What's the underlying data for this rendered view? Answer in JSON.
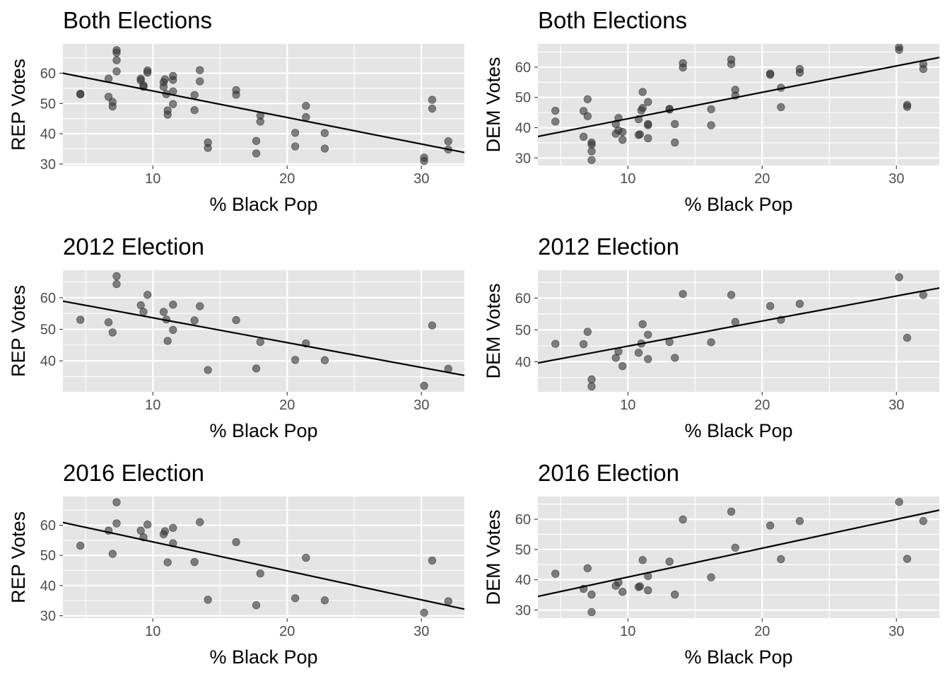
{
  "figure": {
    "background": "#ffffff",
    "panel_background": "#e5e5e5",
    "grid_color": "#ffffff",
    "point_color": "#333333",
    "line_color": "#000000"
  },
  "chart_data": [
    {
      "type": "scatter",
      "title": "Both Elections",
      "xlabel": "% Black Pop",
      "ylabel": "REP Votes",
      "xlim": [
        3.3,
        33.2
      ],
      "ylim": [
        29.5,
        69.7
      ],
      "xticks": [
        10,
        20,
        30
      ],
      "yticks": [
        30,
        40,
        50,
        60
      ],
      "grid": true,
      "trendline": {
        "x": [
          3.3,
          33.2
        ],
        "y": [
          60.0,
          33.8
        ]
      },
      "points": [
        [
          4.6,
          53.2
        ],
        [
          4.6,
          53.0
        ],
        [
          6.7,
          58.2
        ],
        [
          6.7,
          52.2
        ],
        [
          7.0,
          50.5
        ],
        [
          7.0,
          49.0
        ],
        [
          7.3,
          67.6
        ],
        [
          7.3,
          66.8
        ],
        [
          7.3,
          64.3
        ],
        [
          7.3,
          60.6
        ],
        [
          9.1,
          58.2
        ],
        [
          9.1,
          57.6
        ],
        [
          9.3,
          56.0
        ],
        [
          9.3,
          55.5
        ],
        [
          9.6,
          60.9
        ],
        [
          9.6,
          60.2
        ],
        [
          10.8,
          57.0
        ],
        [
          10.8,
          55.5
        ],
        [
          10.9,
          58.0
        ],
        [
          11.0,
          53.1
        ],
        [
          11.1,
          47.7
        ],
        [
          11.1,
          46.3
        ],
        [
          11.5,
          59.1
        ],
        [
          11.5,
          57.8
        ],
        [
          11.5,
          54.0
        ],
        [
          11.5,
          49.8
        ],
        [
          13.1,
          52.8
        ],
        [
          13.1,
          47.8
        ],
        [
          13.5,
          61.0
        ],
        [
          13.5,
          57.3
        ],
        [
          14.1,
          37.1
        ],
        [
          14.1,
          35.3
        ],
        [
          16.2,
          54.4
        ],
        [
          16.2,
          52.9
        ],
        [
          17.7,
          37.6
        ],
        [
          17.7,
          33.5
        ],
        [
          18.0,
          46.0
        ],
        [
          18.0,
          44.0
        ],
        [
          20.6,
          40.3
        ],
        [
          20.6,
          35.8
        ],
        [
          21.4,
          49.2
        ],
        [
          21.4,
          45.5
        ],
        [
          22.8,
          40.2
        ],
        [
          22.8,
          35.1
        ],
        [
          30.2,
          32.1
        ],
        [
          30.2,
          31.0
        ],
        [
          30.8,
          51.2
        ],
        [
          30.8,
          48.3
        ],
        [
          32.0,
          37.5
        ],
        [
          32.0,
          34.8
        ]
      ]
    },
    {
      "type": "scatter",
      "title": "Both Elections",
      "xlabel": "% Black Pop",
      "ylabel": "DEM Votes",
      "xlim": [
        3.3,
        33.2
      ],
      "ylim": [
        27.5,
        67.7
      ],
      "xticks": [
        10,
        20,
        30
      ],
      "yticks": [
        30,
        40,
        50,
        60
      ],
      "grid": true,
      "trendline": {
        "x": [
          3.3,
          33.2
        ],
        "y": [
          37.1,
          63.2
        ]
      },
      "points": [
        [
          4.6,
          45.6
        ],
        [
          4.6,
          42.0
        ],
        [
          6.7,
          45.5
        ],
        [
          6.7,
          37.0
        ],
        [
          7.0,
          49.4
        ],
        [
          7.0,
          43.8
        ],
        [
          7.3,
          35.1
        ],
        [
          7.3,
          34.4
        ],
        [
          7.3,
          32.2
        ],
        [
          7.3,
          29.3
        ],
        [
          9.1,
          41.2
        ],
        [
          9.1,
          38.0
        ],
        [
          9.3,
          43.2
        ],
        [
          9.3,
          39.1
        ],
        [
          9.6,
          38.6
        ],
        [
          9.6,
          36.0
        ],
        [
          10.8,
          42.8
        ],
        [
          10.8,
          37.6
        ],
        [
          10.9,
          37.8
        ],
        [
          11.0,
          45.7
        ],
        [
          11.1,
          51.8
        ],
        [
          11.1,
          46.5
        ],
        [
          11.5,
          48.5
        ],
        [
          11.5,
          41.2
        ],
        [
          11.5,
          40.8
        ],
        [
          11.5,
          36.5
        ],
        [
          13.1,
          46.2
        ],
        [
          13.1,
          46.0
        ],
        [
          13.5,
          41.2
        ],
        [
          13.5,
          35.1
        ],
        [
          14.1,
          61.3
        ],
        [
          14.1,
          59.9
        ],
        [
          16.2,
          46.1
        ],
        [
          16.2,
          40.8
        ],
        [
          17.7,
          62.5
        ],
        [
          17.7,
          61.0
        ],
        [
          18.0,
          52.5
        ],
        [
          18.0,
          50.6
        ],
        [
          20.6,
          57.9
        ],
        [
          20.6,
          57.5
        ],
        [
          21.4,
          53.2
        ],
        [
          21.4,
          46.8
        ],
        [
          22.8,
          59.4
        ],
        [
          22.8,
          58.2
        ],
        [
          30.2,
          66.6
        ],
        [
          30.2,
          65.7
        ],
        [
          30.8,
          47.5
        ],
        [
          30.8,
          46.9
        ],
        [
          32.0,
          61.0
        ],
        [
          32.0,
          59.4
        ]
      ]
    },
    {
      "type": "scatter",
      "title": "2012 Election",
      "xlabel": "% Black Pop",
      "ylabel": "REP Votes",
      "xlim": [
        3.3,
        33.2
      ],
      "ylim": [
        30.2,
        68.7
      ],
      "xticks": [
        10,
        20,
        30
      ],
      "yticks": [
        40,
        50,
        60
      ],
      "grid": true,
      "trendline": {
        "x": [
          3.3,
          33.2
        ],
        "y": [
          58.9,
          35.4
        ]
      },
      "points": [
        [
          4.6,
          53.0
        ],
        [
          6.7,
          52.2
        ],
        [
          7.0,
          49.0
        ],
        [
          7.3,
          66.8
        ],
        [
          7.3,
          64.3
        ],
        [
          9.1,
          57.6
        ],
        [
          9.3,
          55.5
        ],
        [
          9.6,
          60.9
        ],
        [
          10.8,
          55.5
        ],
        [
          11.0,
          53.1
        ],
        [
          11.1,
          46.3
        ],
        [
          11.5,
          57.8
        ],
        [
          11.5,
          49.8
        ],
        [
          13.1,
          52.8
        ],
        [
          13.5,
          57.3
        ],
        [
          14.1,
          37.1
        ],
        [
          16.2,
          52.9
        ],
        [
          17.7,
          37.6
        ],
        [
          18.0,
          46.0
        ],
        [
          20.6,
          40.3
        ],
        [
          21.4,
          45.5
        ],
        [
          22.8,
          40.2
        ],
        [
          30.2,
          32.1
        ],
        [
          30.8,
          51.2
        ],
        [
          32.0,
          37.5
        ]
      ]
    },
    {
      "type": "scatter",
      "title": "2012 Election",
      "xlabel": "% Black Pop",
      "ylabel": "DEM Votes",
      "xlim": [
        3.3,
        33.2
      ],
      "ylim": [
        30.5,
        68.8
      ],
      "xticks": [
        10,
        20,
        30
      ],
      "yticks": [
        40,
        50,
        60
      ],
      "grid": true,
      "trendline": {
        "x": [
          3.3,
          33.2
        ],
        "y": [
          39.6,
          63.2
        ]
      },
      "points": [
        [
          4.6,
          45.6
        ],
        [
          6.7,
          45.5
        ],
        [
          7.0,
          49.4
        ],
        [
          7.3,
          34.4
        ],
        [
          7.3,
          32.2
        ],
        [
          9.1,
          41.2
        ],
        [
          9.3,
          43.2
        ],
        [
          9.6,
          38.6
        ],
        [
          10.8,
          42.8
        ],
        [
          11.0,
          45.7
        ],
        [
          11.1,
          51.8
        ],
        [
          11.5,
          48.5
        ],
        [
          11.5,
          40.8
        ],
        [
          13.1,
          46.2
        ],
        [
          13.5,
          41.2
        ],
        [
          14.1,
          61.3
        ],
        [
          16.2,
          46.1
        ],
        [
          17.7,
          61.0
        ],
        [
          18.0,
          52.5
        ],
        [
          20.6,
          57.5
        ],
        [
          21.4,
          53.2
        ],
        [
          22.8,
          58.2
        ],
        [
          30.2,
          66.6
        ],
        [
          30.8,
          47.5
        ],
        [
          32.0,
          61.0
        ]
      ]
    },
    {
      "type": "scatter",
      "title": "2016 Election",
      "xlabel": "% Black Pop",
      "ylabel": "REP Votes",
      "xlim": [
        3.3,
        33.2
      ],
      "ylim": [
        29.2,
        69.5
      ],
      "xticks": [
        10,
        20,
        30
      ],
      "yticks": [
        30,
        40,
        50,
        60
      ],
      "grid": true,
      "trendline": {
        "x": [
          3.3,
          33.2
        ],
        "y": [
          60.9,
          32.2
        ]
      },
      "points": [
        [
          4.6,
          53.2
        ],
        [
          6.7,
          58.2
        ],
        [
          7.0,
          50.5
        ],
        [
          7.3,
          67.6
        ],
        [
          7.3,
          60.6
        ],
        [
          9.1,
          58.2
        ],
        [
          9.3,
          56.0
        ],
        [
          9.6,
          60.2
        ],
        [
          10.8,
          57.0
        ],
        [
          10.9,
          58.0
        ],
        [
          11.1,
          47.7
        ],
        [
          11.5,
          59.1
        ],
        [
          11.5,
          54.0
        ],
        [
          13.1,
          47.8
        ],
        [
          13.5,
          61.0
        ],
        [
          14.1,
          35.3
        ],
        [
          16.2,
          54.4
        ],
        [
          17.7,
          33.5
        ],
        [
          18.0,
          44.0
        ],
        [
          20.6,
          35.8
        ],
        [
          21.4,
          49.2
        ],
        [
          22.8,
          35.1
        ],
        [
          30.2,
          31.0
        ],
        [
          30.8,
          48.3
        ],
        [
          32.0,
          34.8
        ]
      ]
    },
    {
      "type": "scatter",
      "title": "2016 Election",
      "xlabel": "% Black Pop",
      "ylabel": "DEM Votes",
      "xlim": [
        3.3,
        33.2
      ],
      "ylim": [
        27.3,
        67.5
      ],
      "xticks": [
        10,
        20,
        30
      ],
      "yticks": [
        30,
        40,
        50,
        60
      ],
      "grid": true,
      "trendline": {
        "x": [
          3.3,
          33.2
        ],
        "y": [
          34.5,
          63.0
        ]
      },
      "points": [
        [
          4.6,
          42.0
        ],
        [
          6.7,
          37.0
        ],
        [
          7.0,
          43.8
        ],
        [
          7.3,
          35.1
        ],
        [
          7.3,
          29.3
        ],
        [
          9.1,
          38.0
        ],
        [
          9.3,
          39.1
        ],
        [
          9.6,
          36.0
        ],
        [
          10.8,
          37.6
        ],
        [
          10.9,
          37.8
        ],
        [
          11.1,
          46.5
        ],
        [
          11.5,
          41.2
        ],
        [
          11.5,
          36.5
        ],
        [
          13.1,
          46.0
        ],
        [
          13.5,
          35.1
        ],
        [
          14.1,
          59.9
        ],
        [
          16.2,
          40.8
        ],
        [
          17.7,
          62.5
        ],
        [
          18.0,
          50.6
        ],
        [
          20.6,
          57.9
        ],
        [
          21.4,
          46.8
        ],
        [
          22.8,
          59.4
        ],
        [
          30.2,
          65.7
        ],
        [
          30.8,
          46.9
        ],
        [
          32.0,
          59.4
        ]
      ]
    }
  ]
}
